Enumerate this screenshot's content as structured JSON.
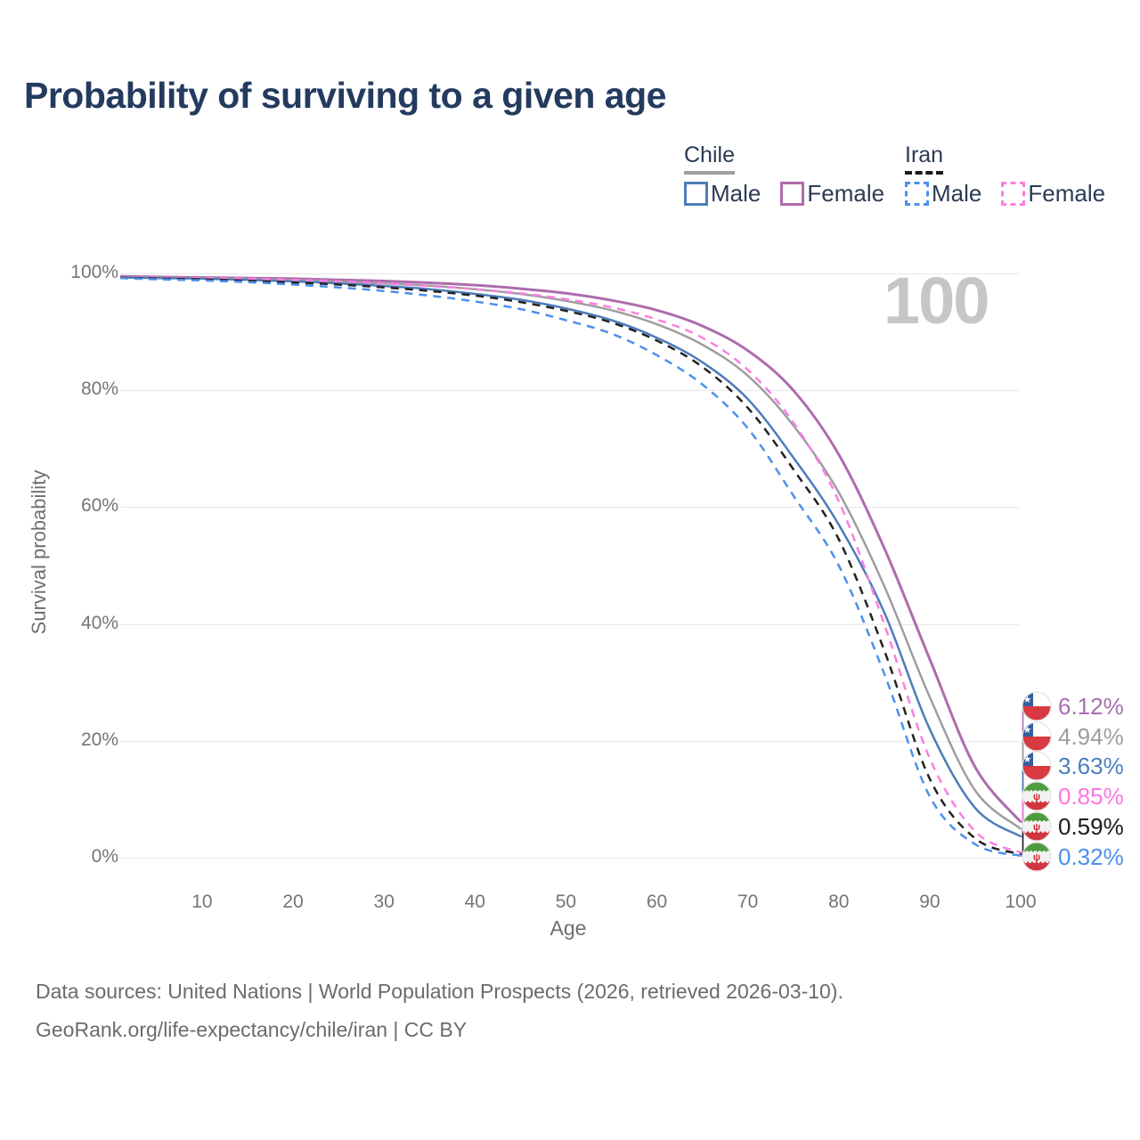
{
  "title": "Probability of surviving to a given age",
  "watermark": "100",
  "legend": {
    "groups": [
      {
        "country": "Chile",
        "style": "solid",
        "underline_color": "#9e9e9e",
        "items": [
          {
            "label": "Male",
            "color": "#4e7cba"
          },
          {
            "label": "Female",
            "color": "#ad6cad"
          }
        ]
      },
      {
        "country": "Iran",
        "style": "dashed",
        "underline_color": "#1a1a1a",
        "items": [
          {
            "label": "Male",
            "color": "#4b90ee"
          },
          {
            "label": "Female",
            "color": "#fb7ee0"
          }
        ]
      }
    ]
  },
  "chart_data": {
    "type": "line",
    "title": "Probability of surviving to a given age",
    "xlabel": "Age",
    "ylabel": "Survival probability",
    "xlim": [
      1,
      100
    ],
    "ylim": [
      0,
      100
    ],
    "grid": "horizontal",
    "legend_position": "top-right",
    "x_ticks": [
      10,
      20,
      30,
      40,
      50,
      60,
      70,
      80,
      90,
      100
    ],
    "y_ticks": [
      {
        "value": 100,
        "label": "100%"
      },
      {
        "value": 80,
        "label": "80%"
      },
      {
        "value": 60,
        "label": "60%"
      },
      {
        "value": 40,
        "label": "40%"
      },
      {
        "value": 20,
        "label": "20%"
      },
      {
        "value": 0,
        "label": "0%"
      }
    ],
    "x": [
      1,
      5,
      10,
      15,
      20,
      25,
      30,
      35,
      40,
      45,
      50,
      55,
      60,
      65,
      70,
      75,
      80,
      85,
      90,
      95,
      100
    ],
    "series": [
      {
        "name": "Chile Female",
        "country": "Chile",
        "sex": "Female",
        "color": "#ad6cad",
        "label_color": "#a66fae",
        "line_style": "solid",
        "flag": "chile",
        "end_label": "6.12%",
        "values": [
          99.5,
          99.4,
          99.3,
          99.2,
          99.1,
          98.9,
          98.7,
          98.4,
          98.0,
          97.4,
          96.6,
          95.4,
          93.7,
          91.0,
          86.8,
          80.0,
          69.0,
          53.0,
          34.0,
          15.5,
          6.12
        ]
      },
      {
        "name": "Chile Both sexes",
        "country": "Chile",
        "sex": "Both sexes",
        "color": "#9e9e9e",
        "label_color": "#9e9e9e",
        "line_style": "solid",
        "flag": "chile",
        "end_label": "4.94%",
        "values": [
          99.4,
          99.3,
          99.2,
          99.05,
          98.85,
          98.6,
          98.3,
          97.9,
          97.3,
          96.5,
          95.3,
          93.7,
          91.3,
          87.8,
          82.5,
          74.0,
          62.5,
          46.5,
          27.5,
          11.5,
          4.94
        ]
      },
      {
        "name": "Chile Male",
        "country": "Chile",
        "sex": "Male",
        "color": "#4e7cba",
        "label_color": "#4a7ec0",
        "line_style": "solid",
        "flag": "chile",
        "end_label": "3.63%",
        "values": [
          99.3,
          99.2,
          99.1,
          98.9,
          98.65,
          98.3,
          97.85,
          97.3,
          96.5,
          95.5,
          94.0,
          92.0,
          89.0,
          84.8,
          78.5,
          68.5,
          57.0,
          42.0,
          22.0,
          8.5,
          3.63
        ]
      },
      {
        "name": "Iran Female",
        "country": "Iran",
        "sex": "Female",
        "color": "#fb7ee0",
        "label_color": "#fb76e0",
        "line_style": "dashed",
        "flag": "iran",
        "end_label": "0.85%",
        "values": [
          99.4,
          99.3,
          99.2,
          99.1,
          98.9,
          98.65,
          98.3,
          97.85,
          97.3,
          96.6,
          95.6,
          94.2,
          92.1,
          89.0,
          83.5,
          74.5,
          61.0,
          40.0,
          17.0,
          4.5,
          0.85
        ]
      },
      {
        "name": "Iran Both sexes",
        "country": "Iran",
        "sex": "Both sexes",
        "color": "#222222",
        "label_color": "#1a1a1a",
        "line_style": "dashed",
        "flag": "iran",
        "end_label": "0.59%",
        "values": [
          99.3,
          99.15,
          99.0,
          98.75,
          98.45,
          98.1,
          97.6,
          97.0,
          96.2,
          95.1,
          93.6,
          91.6,
          88.5,
          84.0,
          77.0,
          66.5,
          54.5,
          35.5,
          13.5,
          3.3,
          0.59
        ]
      },
      {
        "name": "Iran Male",
        "country": "Iran",
        "sex": "Male",
        "color": "#4b90ee",
        "label_color": "#4a90f0",
        "line_style": "dashed",
        "flag": "iran",
        "end_label": "0.32%",
        "values": [
          99.2,
          99.0,
          98.8,
          98.5,
          98.1,
          97.6,
          97.0,
          96.2,
          95.2,
          93.9,
          92.0,
          89.7,
          86.0,
          81.0,
          73.5,
          62.0,
          50.0,
          31.5,
          10.5,
          2.3,
          0.32
        ]
      }
    ]
  },
  "footer": {
    "line1": "Data sources: United Nations | World Population Prospects (2026, retrieved 2026-03-10).",
    "line2": "GeoRank.org/life-expectancy/chile/iran | CC BY"
  }
}
